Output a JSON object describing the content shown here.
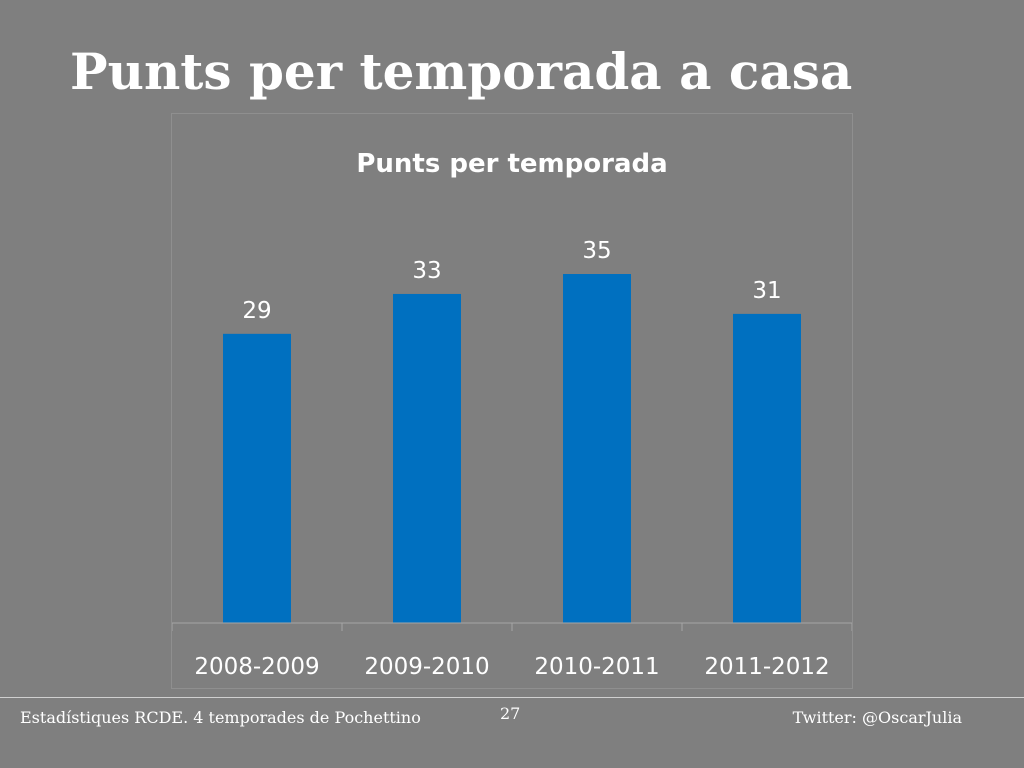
{
  "slide": {
    "title": "Punts per temporada a casa",
    "footer_left": "Estadístiques RCDE. 4 temporades de Pochettino",
    "page_number": "27",
    "footer_right": "Twitter: @OscarJulia"
  },
  "chart_data": {
    "type": "bar",
    "title": "Punts per temporada",
    "categories": [
      "2008-2009",
      "2009-2010",
      "2010-2011",
      "2011-2012"
    ],
    "values": [
      29,
      33,
      35,
      31
    ],
    "data_labels": true,
    "ylim": [
      0,
      35
    ],
    "grid": false,
    "legend": "none",
    "bar_color": "#0070c0",
    "background": "#7f7f7f",
    "text_color": "#ffffff"
  }
}
